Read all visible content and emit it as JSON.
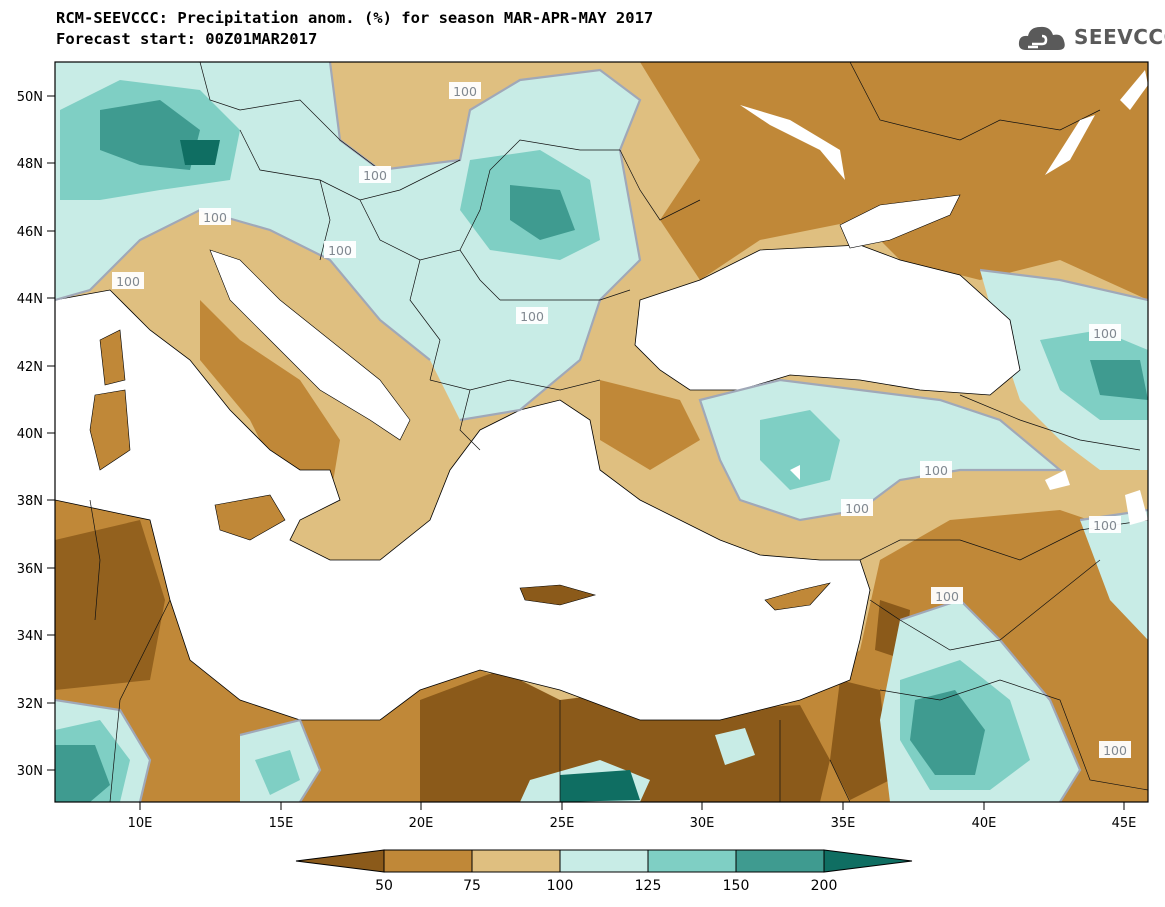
{
  "title": {
    "line1": "RCM-SEEVCCC: Precipitation anom. (%) for season MAR-APR-MAY 2017",
    "line2": "Forecast start: 00Z01MAR2017"
  },
  "logo": {
    "text": "SEEVCCC",
    "icon": "cloud-icon"
  },
  "axes": {
    "lat_labels": [
      "50N",
      "48N",
      "46N",
      "44N",
      "42N",
      "40N",
      "38N",
      "36N",
      "34N",
      "32N",
      "30N"
    ],
    "lon_labels": [
      "10E",
      "15E",
      "20E",
      "25E",
      "30E",
      "35E",
      "40E",
      "45E"
    ]
  },
  "contour_labels": [
    "100",
    "100",
    "100",
    "100",
    "100",
    "100",
    "100",
    "100",
    "100",
    "100",
    "100",
    "100"
  ],
  "colorbar": {
    "tick_labels": [
      "50",
      "75",
      "100",
      "125",
      "150",
      "200"
    ],
    "colors": [
      "#8b5a1a",
      "#c08838",
      "#dfbf80",
      "#c8ece6",
      "#7fcfc4",
      "#3f9b90",
      "#0f6e62"
    ]
  },
  "colors": {
    "very_dry": "#8b5a1a",
    "dry": "#c08838",
    "slightly_dry": "#dfbf80",
    "slightly_wet": "#c8ece6",
    "wet": "#7fcfc4",
    "very_wet": "#3f9b90",
    "extreme_wet": "#0f6e62",
    "contour": "#a0a8b8"
  }
}
